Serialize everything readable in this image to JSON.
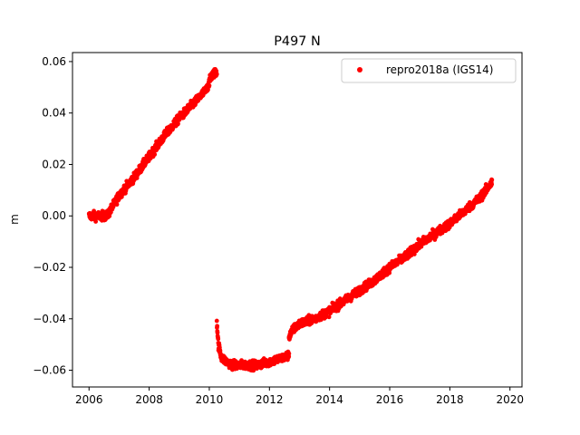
{
  "chart_data": {
    "type": "scatter",
    "title": "P497 N",
    "xlabel": "",
    "ylabel": "m",
    "xlim": [
      2005.45,
      2020.4
    ],
    "ylim": [
      -0.0665,
      0.0635
    ],
    "xticks": [
      2006,
      2008,
      2010,
      2012,
      2014,
      2016,
      2018,
      2020
    ],
    "xtick_labels": [
      "2006",
      "2008",
      "2010",
      "2012",
      "2014",
      "2016",
      "2018",
      "2020"
    ],
    "yticks": [
      -0.06,
      -0.04,
      -0.02,
      0.0,
      0.02,
      0.04,
      0.06
    ],
    "ytick_labels": [
      "−0.06",
      "−0.04",
      "−0.02",
      "0.00",
      "0.02",
      "0.04",
      "0.06"
    ],
    "grid": false,
    "legend_position": "top-right",
    "series": [
      {
        "name": "repro2018a (IGS14)",
        "color": "#ff0000",
        "marker": "circle",
        "segments": [
          {
            "x": [
              2006.0,
              2006.3,
              2006.6,
              2007.0,
              2007.5,
              2008.0,
              2008.5,
              2009.0,
              2009.5,
              2009.9,
              2010.1,
              2010.25
            ],
            "y": [
              0.0,
              0.0,
              0.0,
              0.008,
              0.015,
              0.023,
              0.031,
              0.038,
              0.044,
              0.049,
              0.055,
              0.056
            ]
          },
          {
            "x": [
              2010.25,
              2010.3,
              2010.4,
              2010.6,
              2010.8,
              2011.0,
              2011.3,
              2011.6,
              2011.9,
              2012.2,
              2012.5,
              2012.65
            ],
            "y": [
              -0.041,
              -0.05,
              -0.055,
              -0.057,
              -0.058,
              -0.058,
              -0.058,
              -0.058,
              -0.057,
              -0.056,
              -0.055,
              -0.054
            ]
          },
          {
            "x": [
              2012.65,
              2012.8,
              2013.0,
              2013.5,
              2014.0,
              2014.5,
              2015.0,
              2015.5,
              2016.0,
              2016.5,
              2017.0,
              2017.5,
              2018.0,
              2018.5,
              2019.0,
              2019.4
            ],
            "y": [
              -0.047,
              -0.044,
              -0.042,
              -0.04,
              -0.037,
              -0.033,
              -0.029,
              -0.025,
              -0.02,
              -0.016,
              -0.011,
              -0.007,
              -0.003,
              0.002,
              0.007,
              0.013
            ]
          }
        ]
      }
    ]
  }
}
